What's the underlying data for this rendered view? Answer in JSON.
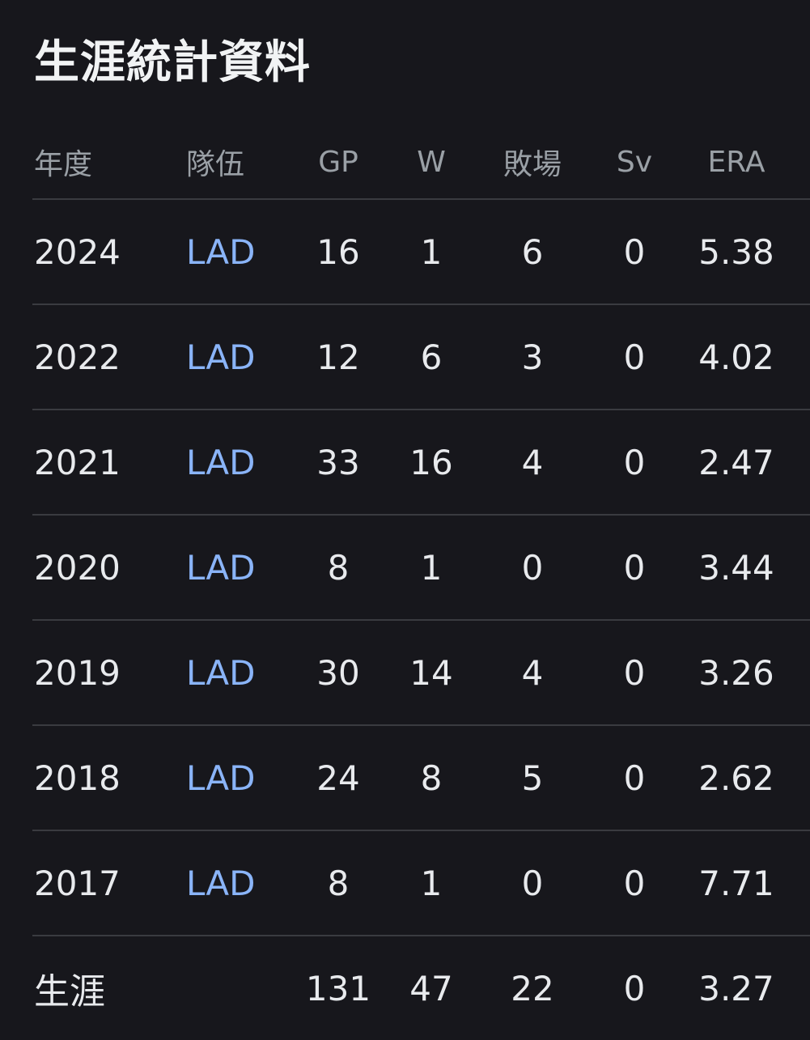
{
  "title": "生涯統計資料",
  "headers": {
    "year": "年度",
    "team": "隊伍",
    "gp": "GP",
    "w": "W",
    "l": "敗場",
    "sv": "Sv",
    "era": "ERA"
  },
  "rows": [
    {
      "year": "2024",
      "team": "LAD",
      "gp": "16",
      "w": "1",
      "l": "6",
      "sv": "0",
      "era": "5.38"
    },
    {
      "year": "2022",
      "team": "LAD",
      "gp": "12",
      "w": "6",
      "l": "3",
      "sv": "0",
      "era": "4.02"
    },
    {
      "year": "2021",
      "team": "LAD",
      "gp": "33",
      "w": "16",
      "l": "4",
      "sv": "0",
      "era": "2.47"
    },
    {
      "year": "2020",
      "team": "LAD",
      "gp": "8",
      "w": "1",
      "l": "0",
      "sv": "0",
      "era": "3.44"
    },
    {
      "year": "2019",
      "team": "LAD",
      "gp": "30",
      "w": "14",
      "l": "4",
      "sv": "0",
      "era": "3.26"
    },
    {
      "year": "2018",
      "team": "LAD",
      "gp": "24",
      "w": "8",
      "l": "5",
      "sv": "0",
      "era": "2.62"
    },
    {
      "year": "2017",
      "team": "LAD",
      "gp": "8",
      "w": "1",
      "l": "0",
      "sv": "0",
      "era": "7.71"
    }
  ],
  "career": {
    "label": "生涯",
    "gp": "131",
    "w": "47",
    "l": "22",
    "sv": "0",
    "era": "3.27"
  },
  "colors": {
    "background": "#17171c",
    "text": "#e8eaed",
    "header_text": "#9aa0a6",
    "link": "#8ab4f8",
    "divider": "#3a3b40"
  }
}
